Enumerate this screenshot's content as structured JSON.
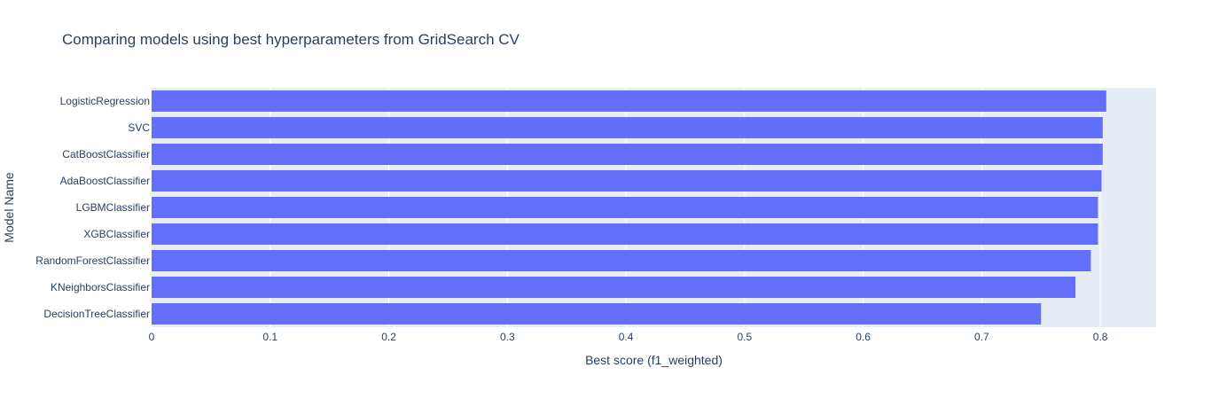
{
  "chart_data": {
    "type": "bar",
    "orientation": "horizontal",
    "title": "Comparing models using best hyperparameters from GridSearch CV",
    "xlabel": "Best score (f1_weighted)",
    "ylabel": "Model Name",
    "xlim": [
      0,
      0.847
    ],
    "xticks": [
      0,
      0.1,
      0.2,
      0.3,
      0.4,
      0.5,
      0.6,
      0.7,
      0.8
    ],
    "xtick_labels": [
      "0",
      "0.1",
      "0.2",
      "0.3",
      "0.4",
      "0.5",
      "0.6",
      "0.7",
      "0.8"
    ],
    "grid": true,
    "legend": false,
    "bar_color": "#636efa",
    "plot_background": "#e5ecf6",
    "text_color": "#2a3f5f",
    "categories": [
      "LogisticRegression",
      "SVC",
      "CatBoostClassifier",
      "AdaBoostClassifier",
      "LGBMClassifier",
      "XGBClassifier",
      "RandomForestClassifier",
      "KNeighborsClassifier",
      "DecisionTreeClassifier"
    ],
    "values": [
      0.805,
      0.802,
      0.802,
      0.801,
      0.798,
      0.798,
      0.792,
      0.779,
      0.75
    ]
  }
}
